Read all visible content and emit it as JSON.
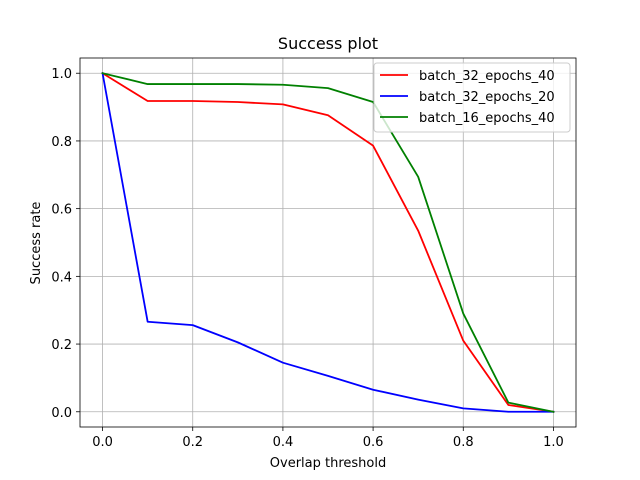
{
  "chart_data": {
    "type": "line",
    "title": "Success plot",
    "xlabel": "Overlap threshold",
    "ylabel": "Success rate",
    "xlim": [
      -0.05,
      1.05
    ],
    "ylim": [
      -0.045,
      1.045
    ],
    "x": [
      0.0,
      0.1,
      0.2,
      0.3,
      0.4,
      0.5,
      0.6,
      0.7,
      0.8,
      0.9,
      1.0
    ],
    "x_ticks": [
      "0.0",
      "0.2",
      "0.4",
      "0.6",
      "0.8",
      "1.0"
    ],
    "y_ticks": [
      "0.0",
      "0.2",
      "0.4",
      "0.6",
      "0.8",
      "1.0"
    ],
    "grid": true,
    "legend_position": "top-right",
    "series": [
      {
        "name": "batch_32_epochs_40",
        "color": "#ff0000",
        "values": [
          1.0,
          0.918,
          0.918,
          0.915,
          0.908,
          0.876,
          0.786,
          0.535,
          0.21,
          0.02,
          0.0
        ]
      },
      {
        "name": "batch_32_epochs_20",
        "color": "#0000ff",
        "values": [
          1.0,
          0.266,
          0.256,
          0.205,
          0.145,
          0.106,
          0.065,
          0.036,
          0.01,
          0.0,
          0.0
        ]
      },
      {
        "name": "batch_16_epochs_40",
        "color": "#008000",
        "values": [
          1.0,
          0.968,
          0.968,
          0.968,
          0.966,
          0.956,
          0.915,
          0.694,
          0.29,
          0.027,
          0.0
        ]
      }
    ]
  }
}
